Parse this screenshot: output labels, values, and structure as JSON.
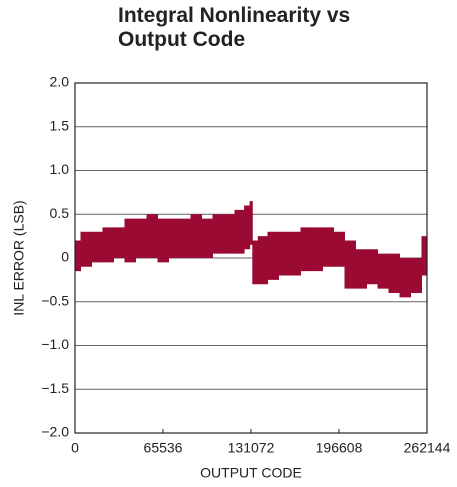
{
  "chart_data": {
    "type": "band",
    "title": "Integral Nonlinearity vs Output Code",
    "x_label": "OUTPUT CODE",
    "y_label": "INL ERROR (LSB)",
    "x": [
      0,
      8192,
      16384,
      24576,
      32768,
      40960,
      49152,
      57344,
      65536,
      73728,
      81920,
      90112,
      98304,
      106496,
      114688,
      122880,
      129000,
      131072,
      133000,
      139264,
      147456,
      155648,
      163840,
      172032,
      180224,
      188416,
      196608,
      204800,
      212992,
      221184,
      229376,
      237568,
      245760,
      253952,
      262144
    ],
    "series": [
      {
        "color": "#9b0a32",
        "values": [
          0.2,
          0.3,
          0.3,
          0.35,
          0.35,
          0.45,
          0.45,
          0.5,
          0.45,
          0.45,
          0.45,
          0.5,
          0.45,
          0.5,
          0.5,
          0.55,
          0.6,
          0.65,
          0.2,
          0.25,
          0.3,
          0.3,
          0.3,
          0.35,
          0.35,
          0.35,
          0.3,
          0.2,
          0.1,
          0.1,
          0.05,
          0.05,
          0.0,
          0.0,
          0.25
        ]
      },
      {
        "color": "#9b0a32",
        "values": [
          -0.15,
          -0.1,
          -0.05,
          -0.05,
          0.0,
          -0.05,
          0.0,
          0.0,
          -0.05,
          0.0,
          0.0,
          0.0,
          0.0,
          0.05,
          0.05,
          0.05,
          0.1,
          0.15,
          -0.3,
          -0.3,
          -0.25,
          -0.2,
          -0.2,
          -0.15,
          -0.15,
          -0.1,
          -0.1,
          -0.35,
          -0.35,
          -0.3,
          -0.35,
          -0.4,
          -0.45,
          -0.4,
          -0.2
        ]
      }
    ],
    "xlim": [
      0,
      262144
    ],
    "xticks": [
      0,
      65536,
      131072,
      196608,
      262144
    ],
    "ylim": [
      -2,
      2
    ],
    "yticks": [
      {
        "value": -2,
        "label": "−2.0"
      },
      {
        "value": -1.5,
        "label": "−1.5"
      },
      {
        "value": -1,
        "label": "−1.0"
      },
      {
        "value": -0.5,
        "label": "−0.5"
      },
      0,
      {
        "value": 0.5,
        "label": "0.5"
      },
      {
        "value": 1,
        "label": "1.0"
      },
      {
        "value": 1.5,
        "label": "1.5"
      },
      {
        "value": 2,
        "label": "2.0"
      }
    ],
    "grid": true
  }
}
